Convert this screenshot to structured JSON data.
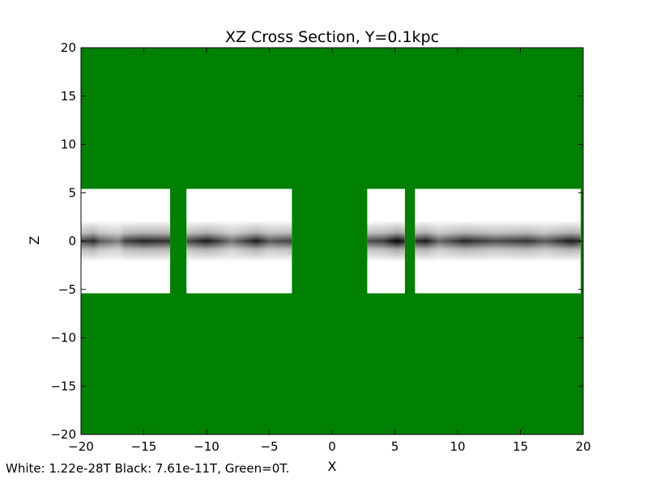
{
  "chart_data": {
    "type": "heatmap",
    "title": "XZ Cross Section, Y=0.1kpc",
    "xlabel": "X",
    "ylabel": "Z",
    "xlim": [
      -20,
      20
    ],
    "ylim": [
      -20,
      20
    ],
    "x_ticks": [
      -20,
      -15,
      -10,
      -5,
      0,
      5,
      10,
      15,
      20
    ],
    "x_tick_labels": [
      "−20",
      "−15",
      "−10",
      "−5",
      "0",
      "5",
      "10",
      "15",
      "20"
    ],
    "y_ticks": [
      20,
      15,
      10,
      5,
      0,
      -5,
      -10,
      -15,
      -20
    ],
    "y_tick_labels": [
      "20",
      "15",
      "10",
      "5",
      "0",
      "−5",
      "−10",
      "−15",
      "−20"
    ],
    "grid": false,
    "colorscale": {
      "white_value": "1.22e-28T",
      "black_value": "7.61e-11T",
      "green_value": "0T",
      "white": "#ffffff",
      "black": "#000000",
      "green": "#008000"
    },
    "background_color": "#008000",
    "field_band": {
      "z_range": [
        -5.4,
        5.4
      ]
    },
    "segments": [
      {
        "x_range": [
          -20,
          -12.9
        ],
        "profile": [
          {
            "x": -20,
            "intensity": 0.7
          },
          {
            "x": -19,
            "intensity": 0.85
          },
          {
            "x": -18.5,
            "intensity": 0.65
          },
          {
            "x": -17,
            "intensity": 0.5
          },
          {
            "x": -16.5,
            "intensity": 0.75
          },
          {
            "x": -15,
            "intensity": 0.85
          },
          {
            "x": -13,
            "intensity": 0.8
          }
        ]
      },
      {
        "x_range": [
          -11.6,
          -3.2
        ],
        "profile": [
          {
            "x": -11.6,
            "intensity": 0.7
          },
          {
            "x": -10,
            "intensity": 0.9
          },
          {
            "x": -9,
            "intensity": 0.75
          },
          {
            "x": -8,
            "intensity": 0.55
          },
          {
            "x": -6,
            "intensity": 0.9
          },
          {
            "x": -5,
            "intensity": 0.65
          },
          {
            "x": -3.3,
            "intensity": 0.75
          }
        ]
      },
      {
        "x_range": [
          2.8,
          5.8
        ],
        "profile": [
          {
            "x": 2.8,
            "intensity": 0.7
          },
          {
            "x": 4,
            "intensity": 0.75
          },
          {
            "x": 5.2,
            "intensity": 1.0
          },
          {
            "x": 5.8,
            "intensity": 0.85
          }
        ]
      },
      {
        "x_range": [
          6.6,
          19.8
        ],
        "profile": [
          {
            "x": 6.6,
            "intensity": 0.8
          },
          {
            "x": 7.5,
            "intensity": 0.9
          },
          {
            "x": 8.5,
            "intensity": 0.6
          },
          {
            "x": 10.5,
            "intensity": 0.85
          },
          {
            "x": 13,
            "intensity": 0.7
          },
          {
            "x": 15.5,
            "intensity": 0.8
          },
          {
            "x": 17,
            "intensity": 0.65
          },
          {
            "x": 19,
            "intensity": 0.9
          },
          {
            "x": 19.8,
            "intensity": 0.8
          }
        ]
      }
    ],
    "footnote": "White: 1.22e-28T  Black: 7.61e-11T, Green=0T."
  }
}
